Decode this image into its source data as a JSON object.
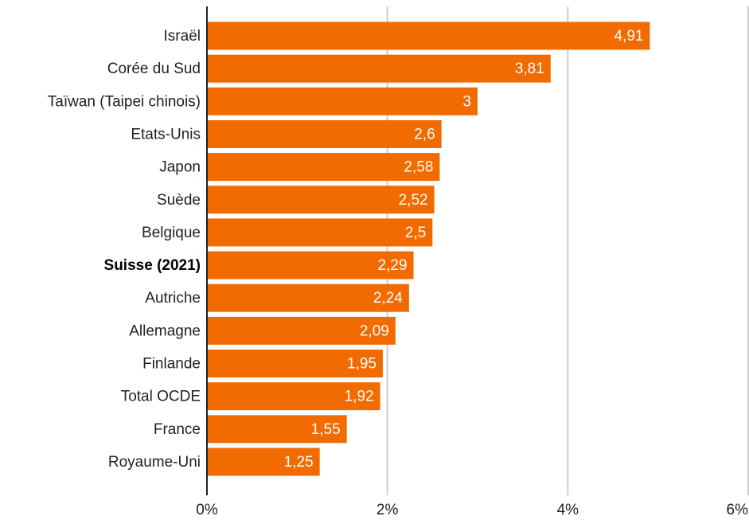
{
  "chart_data": {
    "type": "hbar",
    "categories": [
      "Israël",
      "Corée du Sud",
      "Taïwan (Taipei chinois)",
      "Etats-Unis",
      "Japon",
      "Suède",
      "Belgique",
      "Suisse (2021)",
      "Autriche",
      "Allemagne",
      "Finlande",
      "Total OCDE",
      "France",
      "Royaume-Uni"
    ],
    "values": [
      4.91,
      3.81,
      3,
      2.6,
      2.58,
      2.52,
      2.5,
      2.29,
      2.24,
      2.09,
      1.95,
      1.92,
      1.55,
      1.25
    ],
    "value_labels": [
      "4,91",
      "3,81",
      "3",
      "2,6",
      "2,58",
      "2,52",
      "2,5",
      "2,29",
      "2,24",
      "2,09",
      "1,95",
      "1,92",
      "1,55",
      "1,25"
    ],
    "color": "#f26b00",
    "highlight_index": 7,
    "xlim": [
      0,
      6
    ],
    "xticks": [
      {
        "value": 0,
        "label": "0%"
      },
      {
        "value": 2,
        "label": "2%"
      },
      {
        "value": 4,
        "label": "4%"
      },
      {
        "value": 6,
        "label": "6%"
      }
    ],
    "grid": true
  }
}
